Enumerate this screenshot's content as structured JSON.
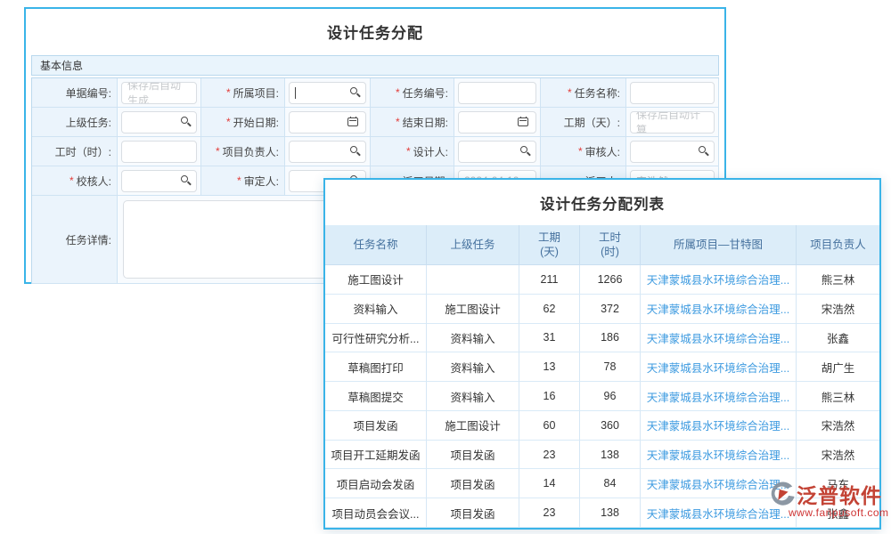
{
  "required_marker": "*",
  "colors": {
    "panel_border": "#3ab4e8",
    "section_bg": "#e9f4fc",
    "header_bg": "#dcedf9",
    "header_text": "#44709d",
    "link": "#3e9be0",
    "required_red": "#e23c39",
    "brand_red": "#c0392b"
  },
  "form": {
    "title": "设计任务分配",
    "section_title": "基本信息",
    "fields": [
      {
        "name": "doc-number",
        "label": "单据编号:",
        "required": false,
        "type": "text",
        "placeholder": "保存后自动生成",
        "value": ""
      },
      {
        "name": "project",
        "label": "所属项目:",
        "required": true,
        "type": "search",
        "value": "",
        "caret": true
      },
      {
        "name": "task-number",
        "label": "任务编号:",
        "required": true,
        "type": "text",
        "value": ""
      },
      {
        "name": "task-name",
        "label": "任务名称:",
        "required": true,
        "type": "text",
        "value": ""
      },
      {
        "name": "parent-task",
        "label": "上级任务:",
        "required": false,
        "type": "search",
        "value": ""
      },
      {
        "name": "start-date",
        "label": "开始日期:",
        "required": true,
        "type": "date",
        "value": ""
      },
      {
        "name": "end-date",
        "label": "结束日期:",
        "required": true,
        "type": "date",
        "value": ""
      },
      {
        "name": "duration-days",
        "label": "工期（天）:",
        "required": false,
        "type": "text",
        "placeholder": "保存后自动计算",
        "value": ""
      },
      {
        "name": "work-hours",
        "label": "工时（时）:",
        "required": false,
        "type": "text",
        "value": ""
      },
      {
        "name": "project-leader",
        "label": "项目负责人:",
        "required": true,
        "type": "search",
        "value": ""
      },
      {
        "name": "designer",
        "label": "设计人:",
        "required": true,
        "type": "search",
        "value": ""
      },
      {
        "name": "reviewer",
        "label": "审核人:",
        "required": true,
        "type": "search",
        "value": ""
      },
      {
        "name": "checker",
        "label": "校核人:",
        "required": true,
        "type": "search",
        "value": ""
      },
      {
        "name": "approver",
        "label": "审定人:",
        "required": true,
        "type": "search",
        "value": ""
      },
      {
        "name": "dispatch-date",
        "label": "派工日期:",
        "required": false,
        "type": "text",
        "value": "2024-04-10",
        "muted": true
      },
      {
        "name": "dispatcher",
        "label": "派工人:",
        "required": false,
        "type": "text",
        "value": "宋浩然",
        "muted": true
      }
    ],
    "details": {
      "label": "任务详情:",
      "value": ""
    }
  },
  "list": {
    "title": "设计任务分配列表",
    "columns": [
      "任务名称",
      "上级任务",
      "工期\n(天)",
      "工时\n(时)",
      "所属项目—甘特图",
      "项目负责人"
    ],
    "rows": [
      {
        "task": "施工图设计",
        "parent": "",
        "days": "211",
        "hours": "1266",
        "project": "天津蒙城县水环境综合治理...",
        "owner": "熊三林"
      },
      {
        "task": "资料输入",
        "parent": "施工图设计",
        "days": "62",
        "hours": "372",
        "project": "天津蒙城县水环境综合治理...",
        "owner": "宋浩然"
      },
      {
        "task": "可行性研究分析...",
        "parent": "资料输入",
        "days": "31",
        "hours": "186",
        "project": "天津蒙城县水环境综合治理...",
        "owner": "张鑫"
      },
      {
        "task": "草稿图打印",
        "parent": "资料输入",
        "days": "13",
        "hours": "78",
        "project": "天津蒙城县水环境综合治理...",
        "owner": "胡广生"
      },
      {
        "task": "草稿图提交",
        "parent": "资料输入",
        "days": "16",
        "hours": "96",
        "project": "天津蒙城县水环境综合治理...",
        "owner": "熊三林"
      },
      {
        "task": "项目发函",
        "parent": "施工图设计",
        "days": "60",
        "hours": "360",
        "project": "天津蒙城县水环境综合治理...",
        "owner": "宋浩然"
      },
      {
        "task": "项目开工延期发函",
        "parent": "项目发函",
        "days": "23",
        "hours": "138",
        "project": "天津蒙城县水环境综合治理...",
        "owner": "宋浩然"
      },
      {
        "task": "项目启动会发函",
        "parent": "项目发函",
        "days": "14",
        "hours": "84",
        "project": "天津蒙城县水环境综合治理...",
        "owner": "马东"
      },
      {
        "task": "项目动员会会议...",
        "parent": "项目发函",
        "days": "23",
        "hours": "138",
        "project": "天津蒙城县水环境综合治理...",
        "owner": "张鑫"
      }
    ]
  },
  "watermark": {
    "brand": "泛普软件",
    "url": "www.fanpusoft.com"
  }
}
